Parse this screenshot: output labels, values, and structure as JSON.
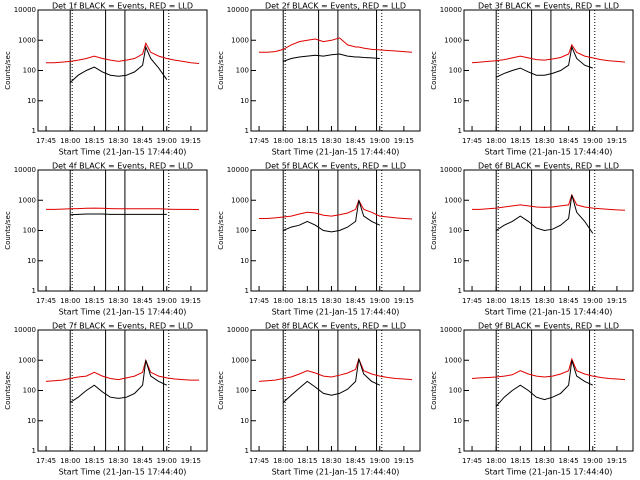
{
  "chart_data": [
    {
      "type": "line",
      "title": "Det 1f BLACK = Events, RED = LLD",
      "xlabel": "Start Time (21-Jan-15 17:44:40)",
      "ylabel": "Counts/sec",
      "log_y": true,
      "xlim": [
        "17:40",
        "19:25"
      ],
      "ylim": [
        1,
        10000
      ],
      "yticks": [
        1,
        10,
        100,
        1000,
        10000
      ],
      "xticks": [
        "17:45",
        "18:00",
        "18:15",
        "18:30",
        "18:45",
        "19:00",
        "19:15"
      ],
      "time_markers": [
        "18:00",
        "18:22",
        "18:34",
        "18:58"
      ],
      "dotted_markers": [
        "18:00",
        "19:00"
      ],
      "x": [
        "17:45",
        "17:50",
        "17:55",
        "18:00",
        "18:05",
        "18:10",
        "18:15",
        "18:20",
        "18:25",
        "18:30",
        "18:35",
        "18:40",
        "18:45",
        "18:47",
        "18:50",
        "18:55",
        "19:00",
        "19:05",
        "19:10",
        "19:15",
        "19:20"
      ],
      "series": [
        {
          "name": "LLD",
          "color": "#e00000",
          "values": [
            180,
            180,
            190,
            200,
            220,
            250,
            300,
            250,
            220,
            200,
            220,
            250,
            350,
            800,
            400,
            300,
            250,
            220,
            200,
            180,
            170
          ]
        },
        {
          "name": "Events",
          "color": "#000000",
          "values": [
            null,
            null,
            null,
            40,
            70,
            100,
            130,
            90,
            70,
            65,
            70,
            90,
            150,
            600,
            250,
            120,
            50,
            null,
            null,
            null,
            null
          ]
        }
      ]
    },
    {
      "type": "line",
      "title": "Det 2f BLACK = Events, RED = LLD",
      "xlabel": "Start Time (21-Jan-15 17:44:40)",
      "ylabel": "Counts/sec",
      "log_y": true,
      "xlim": [
        "17:40",
        "19:25"
      ],
      "ylim": [
        1,
        10000
      ],
      "yticks": [
        1,
        10,
        100,
        1000,
        10000
      ],
      "xticks": [
        "17:45",
        "18:00",
        "18:15",
        "18:30",
        "18:45",
        "19:00",
        "19:15"
      ],
      "time_markers": [
        "18:00",
        "18:22",
        "18:34",
        "18:58"
      ],
      "dotted_markers": [
        "18:00",
        "19:00"
      ],
      "x": [
        "17:45",
        "17:50",
        "17:55",
        "18:00",
        "18:05",
        "18:10",
        "18:15",
        "18:20",
        "18:25",
        "18:30",
        "18:35",
        "18:40",
        "18:45",
        "18:47",
        "18:50",
        "18:55",
        "19:00",
        "19:05",
        "19:10",
        "19:15",
        "19:20"
      ],
      "series": [
        {
          "name": "LLD",
          "color": "#e00000",
          "values": [
            400,
            400,
            420,
            500,
            700,
            900,
            1000,
            1100,
            900,
            1000,
            1200,
            700,
            600,
            600,
            550,
            500,
            480,
            460,
            440,
            420,
            400
          ]
        },
        {
          "name": "Events",
          "color": "#000000",
          "values": [
            null,
            null,
            null,
            200,
            250,
            280,
            300,
            320,
            300,
            330,
            350,
            300,
            280,
            280,
            270,
            260,
            250,
            null,
            null,
            null,
            null
          ]
        }
      ]
    },
    {
      "type": "line",
      "title": "Det 3f BLACK = Events, RED = LLD",
      "xlabel": "Start Time (21-Jan-15 17:44:40)",
      "ylabel": "Counts/sec",
      "log_y": true,
      "xlim": [
        "17:40",
        "19:25"
      ],
      "ylim": [
        1,
        10000
      ],
      "yticks": [
        1,
        10,
        100,
        1000,
        10000
      ],
      "xticks": [
        "17:45",
        "18:00",
        "18:15",
        "18:30",
        "18:45",
        "19:00",
        "19:15"
      ],
      "time_markers": [
        "18:00",
        "18:22",
        "18:34",
        "18:58"
      ],
      "dotted_markers": [
        "18:00",
        "19:00"
      ],
      "x": [
        "17:45",
        "17:50",
        "17:55",
        "18:00",
        "18:05",
        "18:10",
        "18:15",
        "18:20",
        "18:25",
        "18:30",
        "18:35",
        "18:40",
        "18:45",
        "18:47",
        "18:50",
        "18:55",
        "19:00",
        "19:05",
        "19:10",
        "19:15",
        "19:20"
      ],
      "series": [
        {
          "name": "LLD",
          "color": "#e00000",
          "values": [
            180,
            190,
            200,
            210,
            230,
            260,
            300,
            260,
            230,
            220,
            240,
            270,
            350,
            700,
            400,
            300,
            260,
            230,
            210,
            200,
            190
          ]
        },
        {
          "name": "Events",
          "color": "#000000",
          "values": [
            null,
            null,
            null,
            60,
            80,
            100,
            120,
            90,
            70,
            70,
            80,
            100,
            150,
            600,
            250,
            150,
            120,
            null,
            null,
            null,
            null
          ]
        }
      ]
    },
    {
      "type": "line",
      "title": "Det 4f BLACK = Events, RED = LLD",
      "xlabel": "Start Time (21-Jan-15 17:44:40)",
      "ylabel": "Counts/sec",
      "log_y": true,
      "xlim": [
        "17:40",
        "19:25"
      ],
      "ylim": [
        1,
        10000
      ],
      "yticks": [
        1,
        10,
        100,
        1000,
        10000
      ],
      "xticks": [
        "17:45",
        "18:00",
        "18:15",
        "18:30",
        "18:45",
        "19:00",
        "19:15"
      ],
      "time_markers": [
        "18:00",
        "18:22",
        "18:34",
        "18:58"
      ],
      "dotted_markers": [
        "18:00",
        "19:00"
      ],
      "x": [
        "17:45",
        "17:50",
        "17:55",
        "18:00",
        "18:05",
        "18:10",
        "18:15",
        "18:20",
        "18:25",
        "18:30",
        "18:35",
        "18:40",
        "18:45",
        "18:47",
        "18:50",
        "18:55",
        "19:00",
        "19:05",
        "19:10",
        "19:15",
        "19:20"
      ],
      "series": [
        {
          "name": "LLD",
          "color": "#e00000",
          "values": [
            500,
            500,
            510,
            520,
            530,
            540,
            550,
            540,
            530,
            520,
            520,
            520,
            520,
            520,
            520,
            520,
            510,
            500,
            500,
            500,
            490
          ]
        },
        {
          "name": "Events",
          "color": "#000000",
          "values": [
            null,
            null,
            null,
            330,
            340,
            350,
            350,
            350,
            340,
            340,
            340,
            340,
            340,
            340,
            340,
            340,
            340,
            null,
            null,
            null,
            null
          ]
        }
      ]
    },
    {
      "type": "line",
      "title": "Det 5f BLACK = Events, RED = LLD",
      "xlabel": "Start Time (21-Jan-15 17:44:40)",
      "ylabel": "Counts/sec",
      "log_y": true,
      "xlim": [
        "17:40",
        "19:25"
      ],
      "ylim": [
        1,
        10000
      ],
      "yticks": [
        1,
        10,
        100,
        1000,
        10000
      ],
      "xticks": [
        "17:45",
        "18:00",
        "18:15",
        "18:30",
        "18:45",
        "19:00",
        "19:15"
      ],
      "time_markers": [
        "18:00",
        "18:22",
        "18:34",
        "18:58"
      ],
      "dotted_markers": [
        "18:00",
        "19:00"
      ],
      "x": [
        "17:45",
        "17:50",
        "17:55",
        "18:00",
        "18:05",
        "18:10",
        "18:15",
        "18:20",
        "18:25",
        "18:30",
        "18:35",
        "18:40",
        "18:45",
        "18:47",
        "18:50",
        "18:55",
        "19:00",
        "19:05",
        "19:10",
        "19:15",
        "19:20"
      ],
      "series": [
        {
          "name": "LLD",
          "color": "#e00000",
          "values": [
            250,
            250,
            260,
            280,
            300,
            350,
            400,
            380,
            320,
            300,
            330,
            380,
            500,
            1000,
            500,
            400,
            300,
            280,
            260,
            250,
            240
          ]
        },
        {
          "name": "Events",
          "color": "#000000",
          "values": [
            null,
            null,
            null,
            100,
            130,
            150,
            200,
            150,
            100,
            90,
            100,
            130,
            200,
            1000,
            300,
            200,
            150,
            null,
            null,
            null,
            null
          ]
        }
      ]
    },
    {
      "type": "line",
      "title": "Det 6f BLACK = Events, RED = LLD",
      "xlabel": "Start Time (21-Jan-15 17:44:40)",
      "ylabel": "Counts/sec",
      "log_y": true,
      "xlim": [
        "17:40",
        "19:25"
      ],
      "ylim": [
        1,
        10000
      ],
      "yticks": [
        1,
        10,
        100,
        1000,
        10000
      ],
      "xticks": [
        "17:45",
        "18:00",
        "18:15",
        "18:30",
        "18:45",
        "19:00",
        "19:15"
      ],
      "time_markers": [
        "18:00",
        "18:22",
        "18:34",
        "18:58"
      ],
      "dotted_markers": [
        "18:00",
        "19:00"
      ],
      "x": [
        "17:45",
        "17:50",
        "17:55",
        "18:00",
        "18:05",
        "18:10",
        "18:15",
        "18:20",
        "18:25",
        "18:30",
        "18:35",
        "18:40",
        "18:45",
        "18:47",
        "18:50",
        "18:55",
        "19:00",
        "19:05",
        "19:10",
        "19:15",
        "19:20"
      ],
      "series": [
        {
          "name": "LLD",
          "color": "#e00000",
          "values": [
            500,
            500,
            520,
            550,
            600,
            650,
            700,
            650,
            600,
            580,
            600,
            650,
            700,
            1500,
            700,
            600,
            550,
            520,
            500,
            480,
            470
          ]
        },
        {
          "name": "Events",
          "color": "#000000",
          "values": [
            null,
            null,
            null,
            100,
            150,
            200,
            300,
            200,
            120,
            100,
            110,
            150,
            250,
            1500,
            400,
            200,
            80,
            null,
            null,
            null,
            null
          ]
        }
      ]
    },
    {
      "type": "line",
      "title": "Det 7f BLACK = Events, RED = LLD",
      "xlabel": "Start Time (21-Jan-15 17:44:40)",
      "ylabel": "Counts/sec",
      "log_y": true,
      "xlim": [
        "17:40",
        "19:25"
      ],
      "ylim": [
        1,
        10000
      ],
      "yticks": [
        1,
        10,
        100,
        1000,
        10000
      ],
      "xticks": [
        "17:45",
        "18:00",
        "18:15",
        "18:30",
        "18:45",
        "19:00",
        "19:15"
      ],
      "time_markers": [
        "18:00",
        "18:22",
        "18:34",
        "18:58"
      ],
      "dotted_markers": [
        "18:00",
        "19:00"
      ],
      "x": [
        "17:45",
        "17:50",
        "17:55",
        "18:00",
        "18:05",
        "18:10",
        "18:15",
        "18:20",
        "18:25",
        "18:30",
        "18:35",
        "18:40",
        "18:45",
        "18:47",
        "18:50",
        "18:55",
        "19:00",
        "19:05",
        "19:10",
        "19:15",
        "19:20"
      ],
      "series": [
        {
          "name": "LLD",
          "color": "#e00000",
          "values": [
            200,
            210,
            220,
            250,
            280,
            300,
            400,
            300,
            250,
            230,
            260,
            300,
            400,
            1000,
            400,
            300,
            260,
            240,
            230,
            220,
            220
          ]
        },
        {
          "name": "Events",
          "color": "#000000",
          "values": [
            null,
            null,
            null,
            40,
            60,
            100,
            150,
            90,
            60,
            55,
            60,
            80,
            150,
            1000,
            300,
            200,
            150,
            null,
            null,
            null,
            null
          ]
        }
      ]
    },
    {
      "type": "line",
      "title": "Det 8f BLACK = Events, RED = LLD",
      "xlabel": "Start Time (21-Jan-15 17:44:40)",
      "ylabel": "Counts/sec",
      "log_y": true,
      "xlim": [
        "17:40",
        "19:25"
      ],
      "ylim": [
        1,
        10000
      ],
      "yticks": [
        1,
        10,
        100,
        1000,
        10000
      ],
      "xticks": [
        "17:45",
        "18:00",
        "18:15",
        "18:30",
        "18:45",
        "19:00",
        "19:15"
      ],
      "time_markers": [
        "18:00",
        "18:22",
        "18:34",
        "18:58"
      ],
      "dotted_markers": [
        "18:00",
        "19:00"
      ],
      "x": [
        "17:45",
        "17:50",
        "17:55",
        "18:00",
        "18:05",
        "18:10",
        "18:15",
        "18:20",
        "18:25",
        "18:30",
        "18:35",
        "18:40",
        "18:45",
        "18:47",
        "18:50",
        "18:55",
        "19:00",
        "19:05",
        "19:10",
        "19:15",
        "19:20"
      ],
      "series": [
        {
          "name": "LLD",
          "color": "#e00000",
          "values": [
            200,
            210,
            220,
            250,
            280,
            350,
            450,
            380,
            300,
            280,
            320,
            380,
            500,
            1100,
            450,
            350,
            300,
            270,
            250,
            240,
            230
          ]
        },
        {
          "name": "Events",
          "color": "#000000",
          "values": [
            null,
            null,
            null,
            40,
            70,
            120,
            200,
            130,
            80,
            70,
            80,
            110,
            200,
            1100,
            350,
            200,
            150,
            null,
            null,
            null,
            null
          ]
        }
      ]
    },
    {
      "type": "line",
      "title": "Det 9f BLACK = Events, RED = LLD",
      "xlabel": "Start Time (21-Jan-15 17:44:40)",
      "ylabel": "Counts/sec",
      "log_y": true,
      "xlim": [
        "17:40",
        "19:25"
      ],
      "ylim": [
        1,
        10000
      ],
      "yticks": [
        1,
        10,
        100,
        1000,
        10000
      ],
      "xticks": [
        "17:45",
        "18:00",
        "18:15",
        "18:30",
        "18:45",
        "19:00",
        "19:15"
      ],
      "time_markers": [
        "18:00",
        "18:22",
        "18:34",
        "18:58"
      ],
      "dotted_markers": [
        "18:00",
        "19:00"
      ],
      "x": [
        "17:45",
        "17:50",
        "17:55",
        "18:00",
        "18:05",
        "18:10",
        "18:15",
        "18:20",
        "18:25",
        "18:30",
        "18:35",
        "18:40",
        "18:45",
        "18:47",
        "18:50",
        "18:55",
        "19:00",
        "19:05",
        "19:10",
        "19:15",
        "19:20"
      ],
      "series": [
        {
          "name": "LLD",
          "color": "#e00000",
          "values": [
            250,
            260,
            270,
            280,
            300,
            330,
            450,
            350,
            300,
            280,
            300,
            350,
            450,
            1100,
            450,
            350,
            300,
            270,
            250,
            240,
            230
          ]
        },
        {
          "name": "Events",
          "color": "#000000",
          "values": [
            null,
            null,
            null,
            30,
            60,
            100,
            150,
            100,
            60,
            50,
            60,
            80,
            150,
            1000,
            300,
            200,
            150,
            null,
            null,
            null,
            null
          ]
        }
      ]
    }
  ]
}
